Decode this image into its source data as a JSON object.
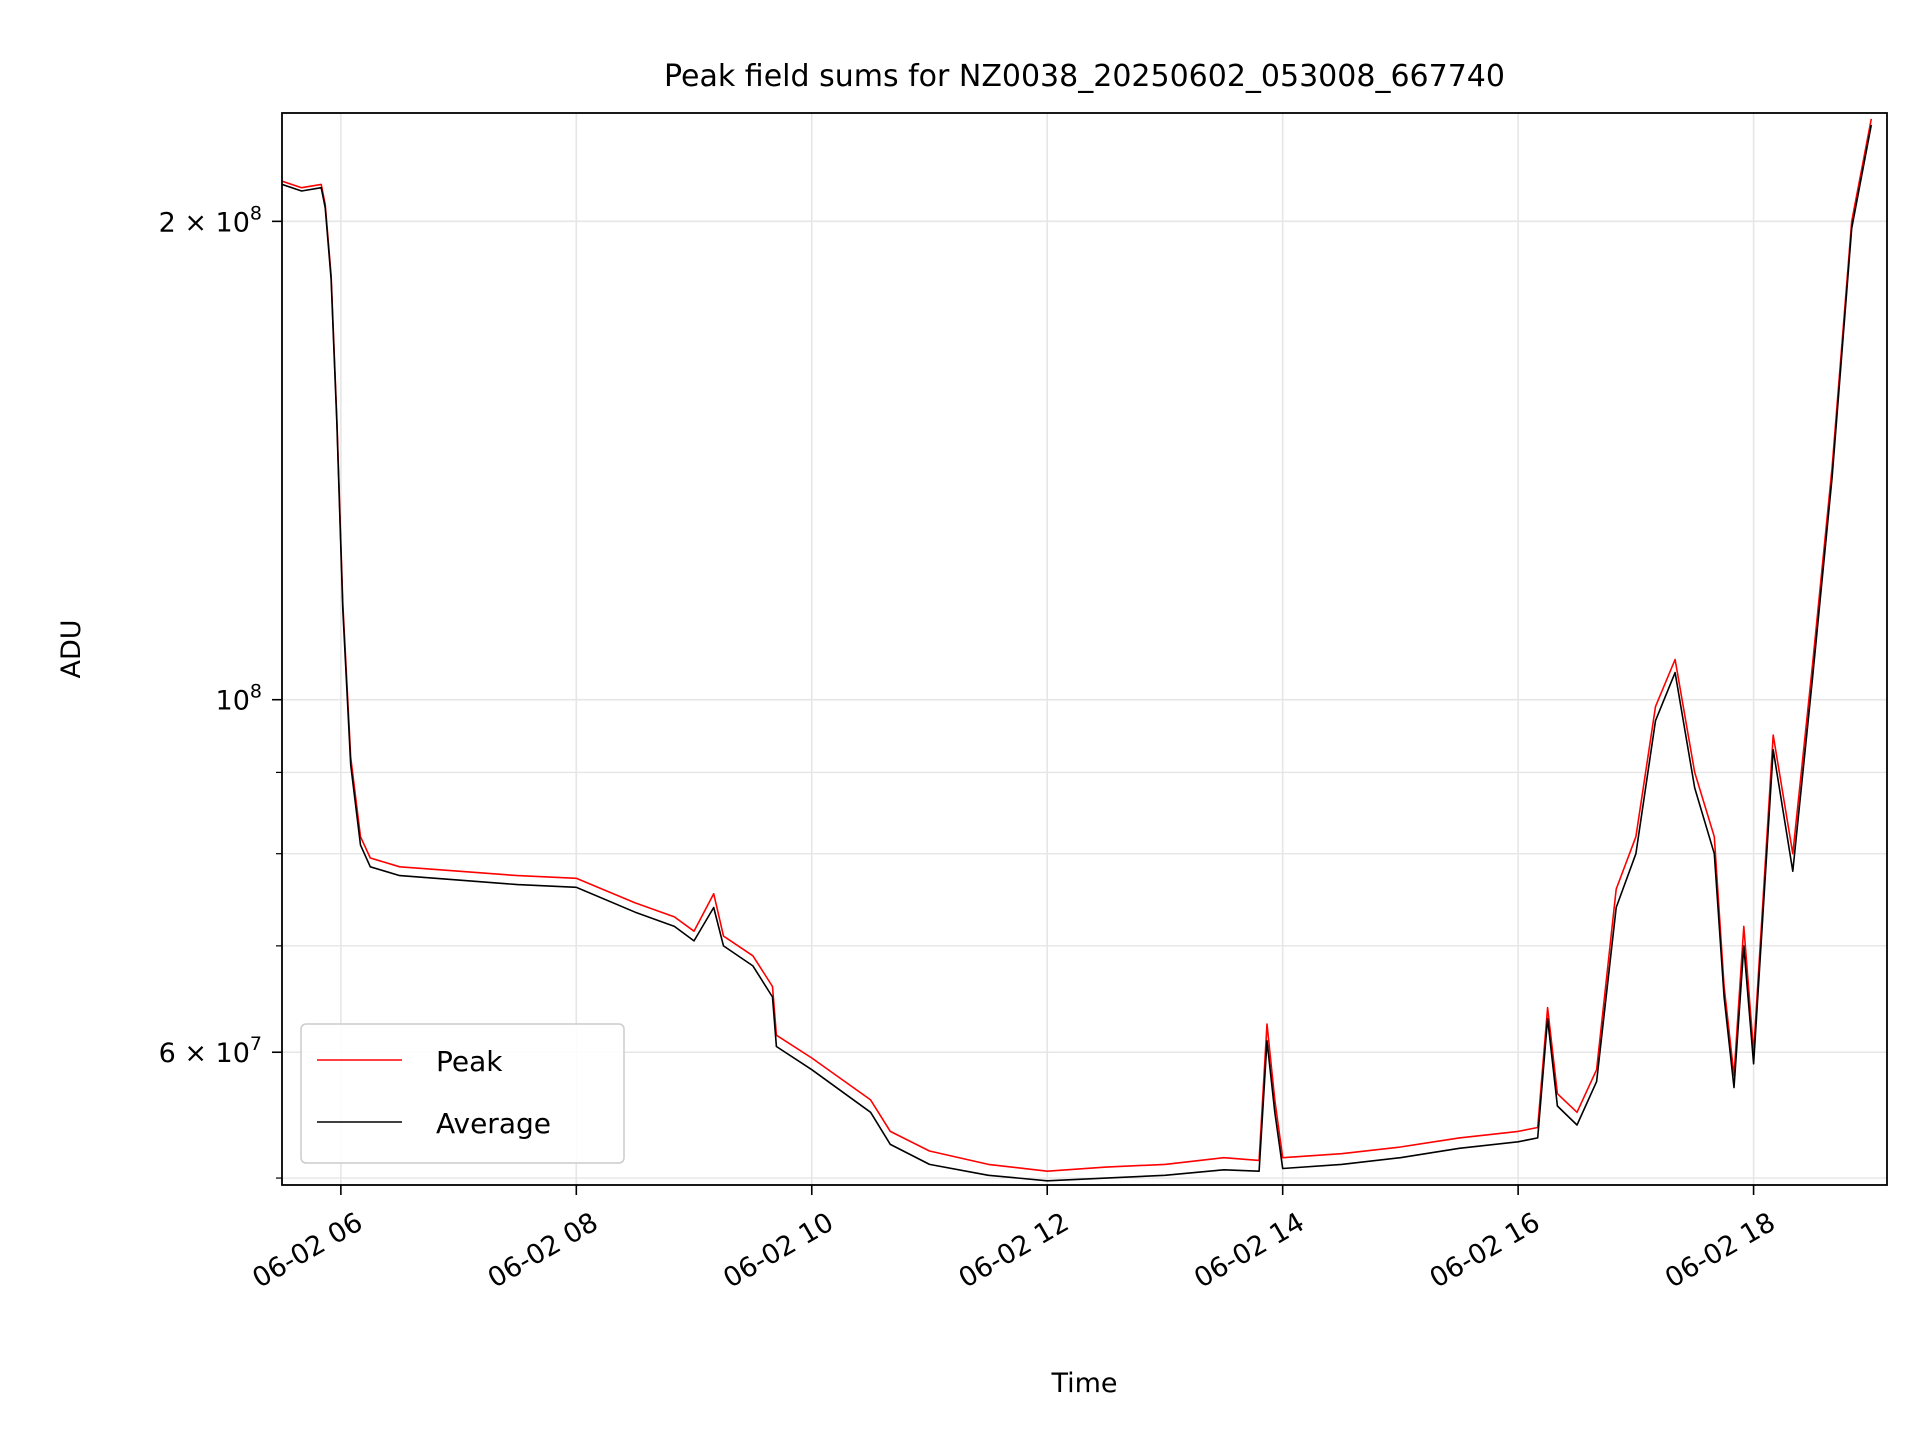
{
  "chart_data": {
    "type": "line",
    "title": "Peak field sums for NZ0038_20250602_053008_667740",
    "xlabel": "Time",
    "ylabel": "ADU",
    "x_scale": "time",
    "y_scale": "log",
    "xlim": [
      "2025-06-02 05:30",
      "2025-06-02 19:08"
    ],
    "ylim": [
      49500000,
      234000000
    ],
    "x_ticks": [
      {
        "value": "2025-06-02 06:00",
        "label": "06-02 06"
      },
      {
        "value": "2025-06-02 08:00",
        "label": "06-02 08"
      },
      {
        "value": "2025-06-02 10:00",
        "label": "06-02 10"
      },
      {
        "value": "2025-06-02 12:00",
        "label": "06-02 12"
      },
      {
        "value": "2025-06-02 14:00",
        "label": "06-02 14"
      },
      {
        "value": "2025-06-02 16:00",
        "label": "06-02 16"
      },
      {
        "value": "2025-06-02 18:00",
        "label": "06-02 18"
      }
    ],
    "y_major_ticks": [
      {
        "value": 60000000,
        "mantissa": "6",
        "base": "10",
        "exp": "7"
      },
      {
        "value": 100000000,
        "mantissa": "",
        "base": "10",
        "exp": "8"
      },
      {
        "value": 200000000,
        "mantissa": "2",
        "base": "10",
        "exp": "8"
      }
    ],
    "y_minor_ticks": [
      50000000,
      70000000,
      80000000,
      90000000
    ],
    "grid": true,
    "legend_position": "lower-left",
    "series": [
      {
        "name": "Peak",
        "color": "#ff0000",
        "points": [
          [
            "2025-06-02 05:30",
            212000000
          ],
          [
            "2025-06-02 05:40",
            210000000
          ],
          [
            "2025-06-02 05:50",
            211000000
          ],
          [
            "2025-06-02 05:52",
            205000000
          ],
          [
            "2025-06-02 05:55",
            185000000
          ],
          [
            "2025-06-02 05:58",
            150000000
          ],
          [
            "2025-06-02 06:01",
            115000000
          ],
          [
            "2025-06-02 06:05",
            92000000
          ],
          [
            "2025-06-02 06:10",
            82000000
          ],
          [
            "2025-06-02 06:15",
            79500000
          ],
          [
            "2025-06-02 06:30",
            78500000
          ],
          [
            "2025-06-02 07:00",
            78000000
          ],
          [
            "2025-06-02 07:30",
            77500000
          ],
          [
            "2025-06-02 08:00",
            77200000
          ],
          [
            "2025-06-02 08:30",
            74500000
          ],
          [
            "2025-06-02 08:50",
            73000000
          ],
          [
            "2025-06-02 09:00",
            71500000
          ],
          [
            "2025-06-02 09:10",
            75500000
          ],
          [
            "2025-06-02 09:15",
            71000000
          ],
          [
            "2025-06-02 09:30",
            69000000
          ],
          [
            "2025-06-02 09:40",
            66000000
          ],
          [
            "2025-06-02 09:42",
            61500000
          ],
          [
            "2025-06-02 10:00",
            59500000
          ],
          [
            "2025-06-02 10:30",
            56000000
          ],
          [
            "2025-06-02 10:40",
            53500000
          ],
          [
            "2025-06-02 11:00",
            52000000
          ],
          [
            "2025-06-02 11:30",
            51000000
          ],
          [
            "2025-06-02 12:00",
            50500000
          ],
          [
            "2025-06-02 12:30",
            50800000
          ],
          [
            "2025-06-02 13:00",
            51000000
          ],
          [
            "2025-06-02 13:30",
            51500000
          ],
          [
            "2025-06-02 13:48",
            51300000
          ],
          [
            "2025-06-02 13:52",
            62500000
          ],
          [
            "2025-06-02 13:56",
            56000000
          ],
          [
            "2025-06-02 14:00",
            51500000
          ],
          [
            "2025-06-02 14:30",
            51800000
          ],
          [
            "2025-06-02 15:00",
            52300000
          ],
          [
            "2025-06-02 15:30",
            53000000
          ],
          [
            "2025-06-02 16:00",
            53500000
          ],
          [
            "2025-06-02 16:10",
            53800000
          ],
          [
            "2025-06-02 16:15",
            64000000
          ],
          [
            "2025-06-02 16:20",
            56500000
          ],
          [
            "2025-06-02 16:30",
            55000000
          ],
          [
            "2025-06-02 16:40",
            58500000
          ],
          [
            "2025-06-02 16:50",
            76000000
          ],
          [
            "2025-06-02 17:00",
            82000000
          ],
          [
            "2025-06-02 17:10",
            99000000
          ],
          [
            "2025-06-02 17:20",
            106000000
          ],
          [
            "2025-06-02 17:30",
            90000000
          ],
          [
            "2025-06-02 17:40",
            82000000
          ],
          [
            "2025-06-02 17:45",
            66000000
          ],
          [
            "2025-06-02 17:50",
            58000000
          ],
          [
            "2025-06-02 17:55",
            72000000
          ],
          [
            "2025-06-02 18:00",
            60000000
          ],
          [
            "2025-06-02 18:10",
            95000000
          ],
          [
            "2025-06-02 18:20",
            80000000
          ],
          [
            "2025-06-02 18:30",
            105000000
          ],
          [
            "2025-06-02 18:40",
            140000000
          ],
          [
            "2025-06-02 18:50",
            200000000
          ],
          [
            "2025-06-02 19:00",
            232000000
          ]
        ]
      },
      {
        "name": "Average",
        "color": "#000000",
        "points": [
          [
            "2025-06-02 05:30",
            211000000
          ],
          [
            "2025-06-02 05:40",
            209000000
          ],
          [
            "2025-06-02 05:50",
            210000000
          ],
          [
            "2025-06-02 05:52",
            204000000
          ],
          [
            "2025-06-02 05:55",
            184000000
          ],
          [
            "2025-06-02 05:58",
            149000000
          ],
          [
            "2025-06-02 06:01",
            114000000
          ],
          [
            "2025-06-02 06:05",
            91000000
          ],
          [
            "2025-06-02 06:10",
            81000000
          ],
          [
            "2025-06-02 06:15",
            78500000
          ],
          [
            "2025-06-02 06:30",
            77500000
          ],
          [
            "2025-06-02 07:00",
            77000000
          ],
          [
            "2025-06-02 07:30",
            76500000
          ],
          [
            "2025-06-02 08:00",
            76200000
          ],
          [
            "2025-06-02 08:30",
            73500000
          ],
          [
            "2025-06-02 08:50",
            72000000
          ],
          [
            "2025-06-02 09:00",
            70500000
          ],
          [
            "2025-06-02 09:10",
            74000000
          ],
          [
            "2025-06-02 09:15",
            70000000
          ],
          [
            "2025-06-02 09:30",
            68000000
          ],
          [
            "2025-06-02 09:40",
            65000000
          ],
          [
            "2025-06-02 09:42",
            60500000
          ],
          [
            "2025-06-02 10:00",
            58500000
          ],
          [
            "2025-06-02 10:30",
            55000000
          ],
          [
            "2025-06-02 10:40",
            52500000
          ],
          [
            "2025-06-02 11:00",
            51000000
          ],
          [
            "2025-06-02 11:30",
            50200000
          ],
          [
            "2025-06-02 12:00",
            49800000
          ],
          [
            "2025-06-02 12:30",
            50000000
          ],
          [
            "2025-06-02 13:00",
            50200000
          ],
          [
            "2025-06-02 13:30",
            50600000
          ],
          [
            "2025-06-02 13:48",
            50500000
          ],
          [
            "2025-06-02 13:52",
            61000000
          ],
          [
            "2025-06-02 13:56",
            55000000
          ],
          [
            "2025-06-02 14:00",
            50700000
          ],
          [
            "2025-06-02 14:30",
            51000000
          ],
          [
            "2025-06-02 15:00",
            51500000
          ],
          [
            "2025-06-02 15:30",
            52200000
          ],
          [
            "2025-06-02 16:00",
            52700000
          ],
          [
            "2025-06-02 16:10",
            53000000
          ],
          [
            "2025-06-02 16:15",
            63000000
          ],
          [
            "2025-06-02 16:20",
            55500000
          ],
          [
            "2025-06-02 16:30",
            54000000
          ],
          [
            "2025-06-02 16:40",
            57500000
          ],
          [
            "2025-06-02 16:50",
            74000000
          ],
          [
            "2025-06-02 17:00",
            80000000
          ],
          [
            "2025-06-02 17:10",
            97000000
          ],
          [
            "2025-06-02 17:20",
            104000000
          ],
          [
            "2025-06-02 17:30",
            88000000
          ],
          [
            "2025-06-02 17:40",
            80000000
          ],
          [
            "2025-06-02 17:45",
            65000000
          ],
          [
            "2025-06-02 17:50",
            57000000
          ],
          [
            "2025-06-02 17:55",
            70000000
          ],
          [
            "2025-06-02 18:00",
            59000000
          ],
          [
            "2025-06-02 18:10",
            93000000
          ],
          [
            "2025-06-02 18:20",
            78000000
          ],
          [
            "2025-06-02 18:30",
            103000000
          ],
          [
            "2025-06-02 18:40",
            138000000
          ],
          [
            "2025-06-02 18:50",
            198000000
          ],
          [
            "2025-06-02 19:00",
            230000000
          ]
        ]
      }
    ]
  }
}
